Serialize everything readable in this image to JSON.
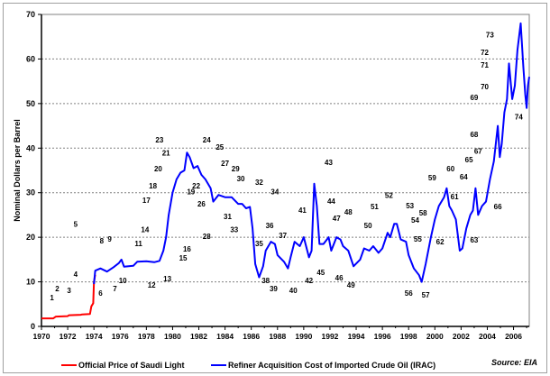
{
  "chart_data": {
    "type": "line",
    "title": "",
    "xlabel": "",
    "ylabel": "Nominal Dollars per Barrel",
    "xlim": [
      1970,
      2007.2
    ],
    "ylim": [
      0,
      70
    ],
    "x_ticks": [
      "1970",
      "1972",
      "1974",
      "1976",
      "1978",
      "1980",
      "1982",
      "1984",
      "1986",
      "1988",
      "1990",
      "1992",
      "1994",
      "1996",
      "1998",
      "2000",
      "2002",
      "2004",
      "2006"
    ],
    "y_ticks": [
      "0",
      "10",
      "20",
      "30",
      "40",
      "50",
      "60",
      "70"
    ],
    "grid": "horizontal dashed",
    "legend_position": "bottom",
    "source": "Source: EIA",
    "series": [
      {
        "name": "Official Price of Saudi Light",
        "color": "#ff0000",
        "points": [
          [
            1970,
            1.8
          ],
          [
            1970.9,
            1.8
          ],
          [
            1971.1,
            2.2
          ],
          [
            1972,
            2.3
          ],
          [
            1972.1,
            2.5
          ],
          [
            1973,
            2.6
          ],
          [
            1973.1,
            2.7
          ],
          [
            1973.7,
            2.8
          ],
          [
            1973.8,
            4.5
          ],
          [
            1973.95,
            5.2
          ],
          [
            1974.0,
            10.0
          ],
          [
            1974.1,
            11.6
          ]
        ]
      },
      {
        "name": "Refiner Acquisition Cost of Imported Crude Oil (IRAC)",
        "color": "#0000ff",
        "points": [
          [
            1974.0,
            9.5
          ],
          [
            1974.1,
            12.5
          ],
          [
            1974.5,
            13
          ],
          [
            1975,
            12.3
          ],
          [
            1975.5,
            13.3
          ],
          [
            1975.9,
            14.2
          ],
          [
            1976.1,
            15
          ],
          [
            1976.3,
            13.4
          ],
          [
            1977,
            13.6
          ],
          [
            1977.3,
            14.5
          ],
          [
            1978,
            14.6
          ],
          [
            1978.6,
            14.4
          ],
          [
            1979,
            14.7
          ],
          [
            1979.3,
            17
          ],
          [
            1979.5,
            20
          ],
          [
            1979.7,
            25
          ],
          [
            1980,
            30
          ],
          [
            1980.3,
            33
          ],
          [
            1980.6,
            34.5
          ],
          [
            1980.9,
            35
          ],
          [
            1981.1,
            39
          ],
          [
            1981.3,
            38
          ],
          [
            1981.6,
            35.5
          ],
          [
            1981.9,
            36
          ],
          [
            1982.2,
            34
          ],
          [
            1982.5,
            33
          ],
          [
            1982.9,
            31
          ],
          [
            1983.1,
            28
          ],
          [
            1983.5,
            29.5
          ],
          [
            1984,
            29
          ],
          [
            1984.5,
            29
          ],
          [
            1985,
            27.5
          ],
          [
            1985.3,
            27.5
          ],
          [
            1985.6,
            26.5
          ],
          [
            1985.9,
            26.8
          ],
          [
            1986.1,
            22
          ],
          [
            1986.3,
            14
          ],
          [
            1986.6,
            11
          ],
          [
            1986.9,
            13.5
          ],
          [
            1987.1,
            17
          ],
          [
            1987.5,
            19
          ],
          [
            1987.8,
            18.5
          ],
          [
            1988,
            16
          ],
          [
            1988.5,
            14.5
          ],
          [
            1988.8,
            13
          ],
          [
            1989,
            15.5
          ],
          [
            1989.3,
            19
          ],
          [
            1989.7,
            18
          ],
          [
            1990,
            20
          ],
          [
            1990.4,
            15.5
          ],
          [
            1990.6,
            17
          ],
          [
            1990.8,
            32
          ],
          [
            1991,
            27
          ],
          [
            1991.2,
            18.5
          ],
          [
            1991.5,
            18.5
          ],
          [
            1991.9,
            20
          ],
          [
            1992.1,
            17
          ],
          [
            1992.5,
            20
          ],
          [
            1992.8,
            19.5
          ],
          [
            1993,
            18
          ],
          [
            1993.4,
            17
          ],
          [
            1993.8,
            13.5
          ],
          [
            1994.3,
            15
          ],
          [
            1994.6,
            17.5
          ],
          [
            1995,
            17
          ],
          [
            1995.3,
            18
          ],
          [
            1995.7,
            16.5
          ],
          [
            1996,
            17.5
          ],
          [
            1996.4,
            21
          ],
          [
            1996.6,
            20
          ],
          [
            1996.9,
            23
          ],
          [
            1997.1,
            23
          ],
          [
            1997.4,
            19.5
          ],
          [
            1997.8,
            19
          ],
          [
            1998,
            16
          ],
          [
            1998.4,
            13
          ],
          [
            1998.8,
            11.5
          ],
          [
            1999,
            10
          ],
          [
            1999.3,
            14
          ],
          [
            1999.7,
            20
          ],
          [
            2000,
            24
          ],
          [
            2000.3,
            27
          ],
          [
            2000.7,
            29
          ],
          [
            2000.9,
            31
          ],
          [
            2001.1,
            27
          ],
          [
            2001.3,
            26
          ],
          [
            2001.6,
            24
          ],
          [
            2001.9,
            17
          ],
          [
            2002.1,
            17.5
          ],
          [
            2002.4,
            22
          ],
          [
            2002.7,
            25
          ],
          [
            2002.9,
            26
          ],
          [
            2003.1,
            31
          ],
          [
            2003.3,
            25
          ],
          [
            2003.6,
            27
          ],
          [
            2003.9,
            28
          ],
          [
            2004.2,
            33
          ],
          [
            2004.5,
            37
          ],
          [
            2004.8,
            45
          ],
          [
            2004.95,
            38
          ],
          [
            2005.1,
            41
          ],
          [
            2005.3,
            48
          ],
          [
            2005.5,
            51
          ],
          [
            2005.65,
            59
          ],
          [
            2005.9,
            51
          ],
          [
            2006.1,
            54
          ],
          [
            2006.3,
            62
          ],
          [
            2006.55,
            68
          ],
          [
            2006.75,
            58
          ],
          [
            2006.9,
            52
          ],
          [
            2007.0,
            49
          ],
          [
            2007.1,
            54
          ],
          [
            2007.2,
            56
          ]
        ]
      }
    ],
    "annotations": [
      {
        "label": "1",
        "x": 1970.8,
        "y": 6.5
      },
      {
        "label": "2",
        "x": 1971.2,
        "y": 8.5
      },
      {
        "label": "3",
        "x": 1972.1,
        "y": 8.1
      },
      {
        "label": "4",
        "x": 1972.6,
        "y": 11.7
      },
      {
        "label": "5",
        "x": 1972.6,
        "y": 23
      },
      {
        "label": "6",
        "x": 1974.5,
        "y": 7.5
      },
      {
        "label": "7",
        "x": 1975.6,
        "y": 8.5
      },
      {
        "label": "8",
        "x": 1974.6,
        "y": 19.2
      },
      {
        "label": "9",
        "x": 1975.2,
        "y": 19.6
      },
      {
        "label": "10",
        "x": 1976.2,
        "y": 10.3
      },
      {
        "label": "11",
        "x": 1977.4,
        "y": 18.6
      },
      {
        "label": "12",
        "x": 1978.4,
        "y": 9.3
      },
      {
        "label": "13",
        "x": 1979.6,
        "y": 10.7
      },
      {
        "label": "14",
        "x": 1977.9,
        "y": 21.7
      },
      {
        "label": "15",
        "x": 1980.8,
        "y": 15.4
      },
      {
        "label": "16",
        "x": 1981.1,
        "y": 17.4
      },
      {
        "label": "17",
        "x": 1978.0,
        "y": 28.3
      },
      {
        "label": "18",
        "x": 1978.5,
        "y": 31.6
      },
      {
        "label": "19",
        "x": 1981.4,
        "y": 30.2
      },
      {
        "label": "20",
        "x": 1978.9,
        "y": 35.4
      },
      {
        "label": "21",
        "x": 1979.5,
        "y": 38.9
      },
      {
        "label": "22",
        "x": 1981.8,
        "y": 31.6
      },
      {
        "label": "23",
        "x": 1979.0,
        "y": 41.9
      },
      {
        "label": "24",
        "x": 1982.6,
        "y": 41.9
      },
      {
        "label": "25",
        "x": 1983.6,
        "y": 40.3
      },
      {
        "label": "26",
        "x": 1982.2,
        "y": 27.5
      },
      {
        "label": "27",
        "x": 1984.0,
        "y": 36.6
      },
      {
        "label": "28",
        "x": 1982.6,
        "y": 20.2
      },
      {
        "label": "29",
        "x": 1984.8,
        "y": 35.4
      },
      {
        "label": "30",
        "x": 1985.2,
        "y": 33.2
      },
      {
        "label": "31",
        "x": 1984.2,
        "y": 24.7
      },
      {
        "label": "32",
        "x": 1986.6,
        "y": 32.4
      },
      {
        "label": "33",
        "x": 1984.7,
        "y": 21.7
      },
      {
        "label": "34",
        "x": 1987.8,
        "y": 30.2
      },
      {
        "label": "35",
        "x": 1986.6,
        "y": 18.6
      },
      {
        "label": "36",
        "x": 1987.4,
        "y": 22.7
      },
      {
        "label": "37",
        "x": 1988.4,
        "y": 20.4
      },
      {
        "label": "38",
        "x": 1987.1,
        "y": 10.3
      },
      {
        "label": "39",
        "x": 1987.7,
        "y": 8.5
      },
      {
        "label": "40",
        "x": 1989.2,
        "y": 8.1
      },
      {
        "label": "41",
        "x": 1989.9,
        "y": 26.1
      },
      {
        "label": "42",
        "x": 1990.4,
        "y": 10.3
      },
      {
        "label": "43",
        "x": 1991.9,
        "y": 36.8
      },
      {
        "label": "44",
        "x": 1992.1,
        "y": 28.1
      },
      {
        "label": "45",
        "x": 1991.3,
        "y": 12.1
      },
      {
        "label": "46",
        "x": 1992.7,
        "y": 10.9
      },
      {
        "label": "47",
        "x": 1992.5,
        "y": 24.3
      },
      {
        "label": "48",
        "x": 1993.4,
        "y": 25.7
      },
      {
        "label": "49",
        "x": 1993.6,
        "y": 9.3
      },
      {
        "label": "50",
        "x": 1994.9,
        "y": 22.7
      },
      {
        "label": "51",
        "x": 1995.4,
        "y": 26.9
      },
      {
        "label": "52",
        "x": 1996.5,
        "y": 29.4
      },
      {
        "label": "53",
        "x": 1998.1,
        "y": 27.1
      },
      {
        "label": "54",
        "x": 1998.5,
        "y": 23.9
      },
      {
        "label": "55",
        "x": 1998.7,
        "y": 19.6
      },
      {
        "label": "56",
        "x": 1998.0,
        "y": 7.5
      },
      {
        "label": "57",
        "x": 1999.3,
        "y": 7.1
      },
      {
        "label": "58",
        "x": 1999.1,
        "y": 25.5
      },
      {
        "label": "59",
        "x": 1999.8,
        "y": 33.4
      },
      {
        "label": "60",
        "x": 2001.2,
        "y": 35.4
      },
      {
        "label": "61",
        "x": 2001.5,
        "y": 29.1
      },
      {
        "label": "62",
        "x": 2000.4,
        "y": 19.0
      },
      {
        "label": "63",
        "x": 2003.0,
        "y": 19.4
      },
      {
        "label": "64",
        "x": 2002.2,
        "y": 33.6
      },
      {
        "label": "65",
        "x": 2002.6,
        "y": 37.4
      },
      {
        "label": "66",
        "x": 2004.8,
        "y": 26.9
      },
      {
        "label": "67",
        "x": 2003.3,
        "y": 39.3
      },
      {
        "label": "68",
        "x": 2003.0,
        "y": 43.1
      },
      {
        "label": "69",
        "x": 2003.0,
        "y": 51.4
      },
      {
        "label": "70",
        "x": 2003.8,
        "y": 53.8
      },
      {
        "label": "71",
        "x": 2003.8,
        "y": 58.7
      },
      {
        "label": "72",
        "x": 2003.8,
        "y": 61.5
      },
      {
        "label": "73",
        "x": 2004.2,
        "y": 65.4
      },
      {
        "label": "74",
        "x": 2006.4,
        "y": 47
      }
    ]
  }
}
